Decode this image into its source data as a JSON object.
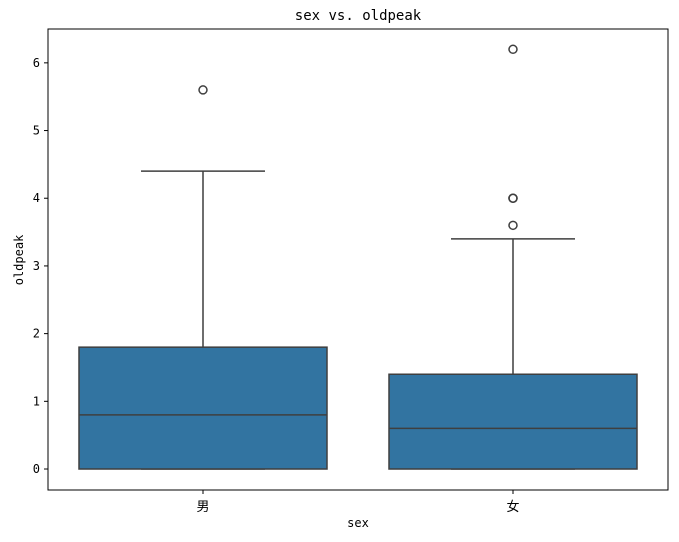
{
  "chart_data": {
    "type": "box",
    "title": "sex vs. oldpeak",
    "xlabel": "sex",
    "ylabel": "oldpeak",
    "categories": [
      "男",
      "女"
    ],
    "ylim": [
      -0.31,
      6.5
    ],
    "yticks": [
      0,
      1,
      2,
      3,
      4,
      5,
      6
    ],
    "grid": false,
    "box_color": "#3274a1",
    "line_color": "#3f3f3f",
    "boxes": [
      {
        "category": "男",
        "whisker_low": 0,
        "q1": 0,
        "median": 0.8,
        "q3": 1.8,
        "whisker_high": 4.4,
        "outliers": [
          5.6
        ]
      },
      {
        "category": "女",
        "whisker_low": 0,
        "q1": 0,
        "median": 0.6,
        "q3": 1.4,
        "whisker_high": 3.4,
        "outliers": [
          3.6,
          4.0,
          4.0,
          6.2
        ]
      }
    ]
  }
}
